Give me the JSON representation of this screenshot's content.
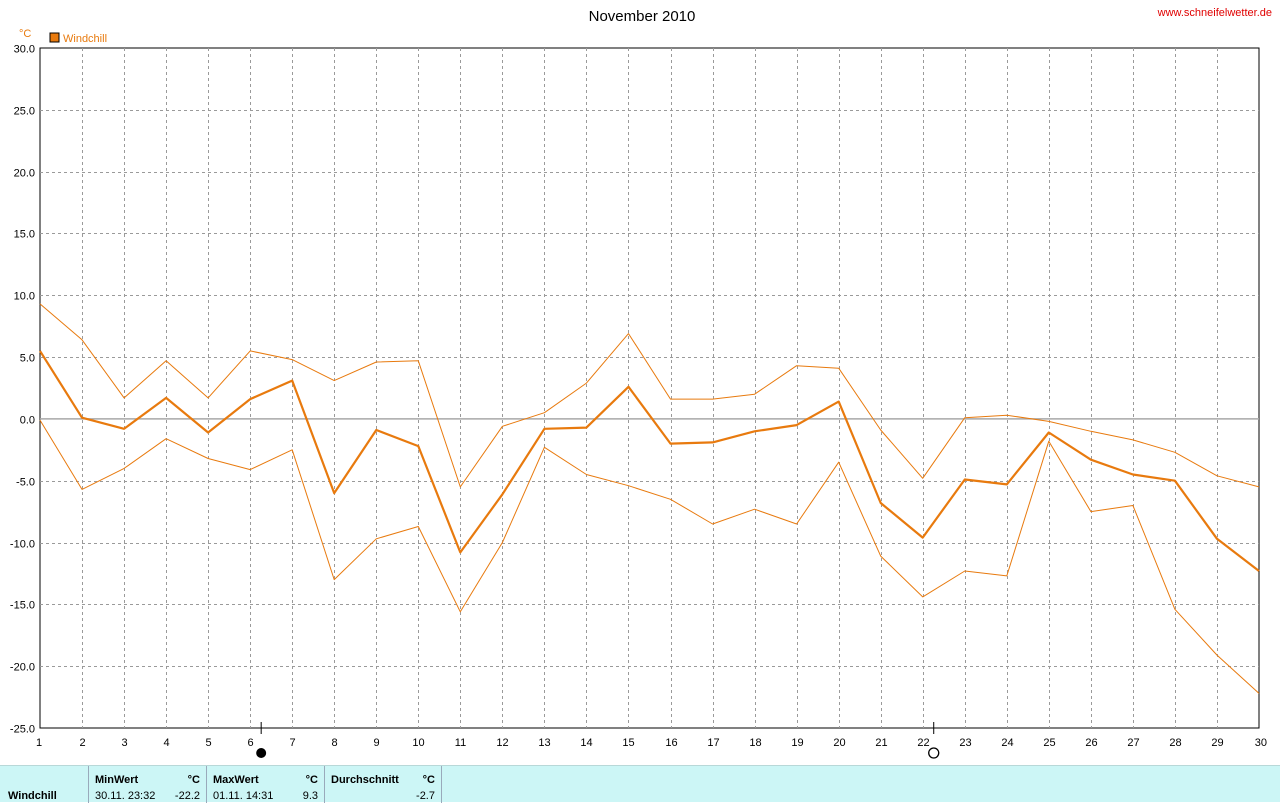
{
  "chart_data": {
    "type": "line",
    "title": "November 2010",
    "source": "www.schneifelwetter.de",
    "unit": "°C",
    "legend": [
      {
        "label": "Windchill",
        "color": "#e87a0e"
      }
    ],
    "legend_position": "top-left",
    "grid": true,
    "xlim": [
      1,
      30
    ],
    "ylim": [
      -25,
      30
    ],
    "x_ticks": [
      1,
      2,
      3,
      4,
      5,
      6,
      7,
      8,
      9,
      10,
      11,
      12,
      13,
      14,
      15,
      16,
      17,
      18,
      19,
      20,
      21,
      22,
      23,
      24,
      25,
      26,
      27,
      28,
      29,
      30
    ],
    "y_ticks": [
      "30.0",
      "25.0",
      "20.0",
      "15.0",
      "10.0",
      "5.0",
      "0.0",
      "-5.0",
      "-10.0",
      "-15.0",
      "-20.0",
      "-25.0"
    ],
    "moon_phases": [
      {
        "day": 6,
        "phase": "new-moon"
      },
      {
        "day": 22,
        "phase": "full-moon"
      }
    ],
    "x": [
      1,
      2,
      3,
      4,
      5,
      6,
      7,
      8,
      9,
      10,
      11,
      12,
      13,
      14,
      15,
      16,
      17,
      18,
      19,
      20,
      21,
      22,
      23,
      24,
      25,
      26,
      27,
      28,
      29,
      30
    ],
    "series": [
      {
        "role": "max",
        "color": "#e87a0e",
        "width": 1,
        "values": [
          9.3,
          6.4,
          1.7,
          4.7,
          1.7,
          5.5,
          4.8,
          3.1,
          4.6,
          4.7,
          -5.5,
          -0.6,
          0.5,
          2.9,
          6.9,
          1.6,
          1.6,
          2.0,
          4.3,
          4.1,
          -0.9,
          -4.8,
          0.1,
          0.3,
          -0.2,
          -1.0,
          -1.7,
          -2.7,
          -4.6,
          -5.5
        ]
      },
      {
        "role": "avg",
        "color": "#e87a0e",
        "width": 2.2,
        "values": [
          5.5,
          0.1,
          -0.8,
          1.7,
          -1.1,
          1.6,
          3.1,
          -6.0,
          -0.9,
          -2.2,
          -10.8,
          -6.1,
          -0.8,
          -0.7,
          2.6,
          -2.0,
          -1.9,
          -1.0,
          -0.5,
          1.4,
          -6.8,
          -9.6,
          -4.9,
          -5.3,
          -1.1,
          -3.3,
          -4.5,
          -5.0,
          -9.7,
          -12.3
        ]
      },
      {
        "role": "min",
        "color": "#e87a0e",
        "width": 1,
        "values": [
          -0.1,
          -5.7,
          -4.0,
          -1.6,
          -3.2,
          -4.1,
          -2.5,
          -13.0,
          -9.7,
          -8.7,
          -15.6,
          -10.0,
          -2.3,
          -4.5,
          -5.4,
          -6.5,
          -8.5,
          -7.3,
          -8.5,
          -3.5,
          -11.1,
          -14.4,
          -12.3,
          -12.7,
          -1.8,
          -7.5,
          -7.0,
          -15.4,
          -19.1,
          -22.2
        ]
      }
    ]
  },
  "footer": {
    "series_name": "Windchill",
    "min": {
      "label": "MinWert",
      "unit": "°C",
      "datetime": "30.11.  23:32",
      "value": "-22.2"
    },
    "max": {
      "label": "MaxWert",
      "unit": "°C",
      "datetime": "01.11.  14:31",
      "value": "9.3"
    },
    "avg": {
      "label": "Durchschnitt",
      "unit": "°C",
      "value": "-2.7"
    }
  }
}
